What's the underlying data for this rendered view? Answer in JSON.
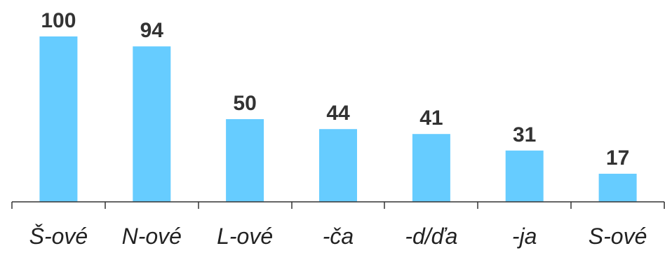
{
  "chart_data": {
    "type": "bar",
    "categories": [
      "Š-ové",
      "N-ové",
      "L-ové",
      "-ča",
      "-d/ďa",
      "-ja",
      "S-ové"
    ],
    "values": [
      100,
      94,
      50,
      44,
      41,
      31,
      17
    ],
    "title": "",
    "xlabel": "",
    "ylabel": "",
    "ylim": [
      0,
      100
    ],
    "grid": false,
    "data_labels": true,
    "colors": {
      "bar": "#66ccff",
      "axis": "#333333",
      "label": "#333333"
    }
  }
}
